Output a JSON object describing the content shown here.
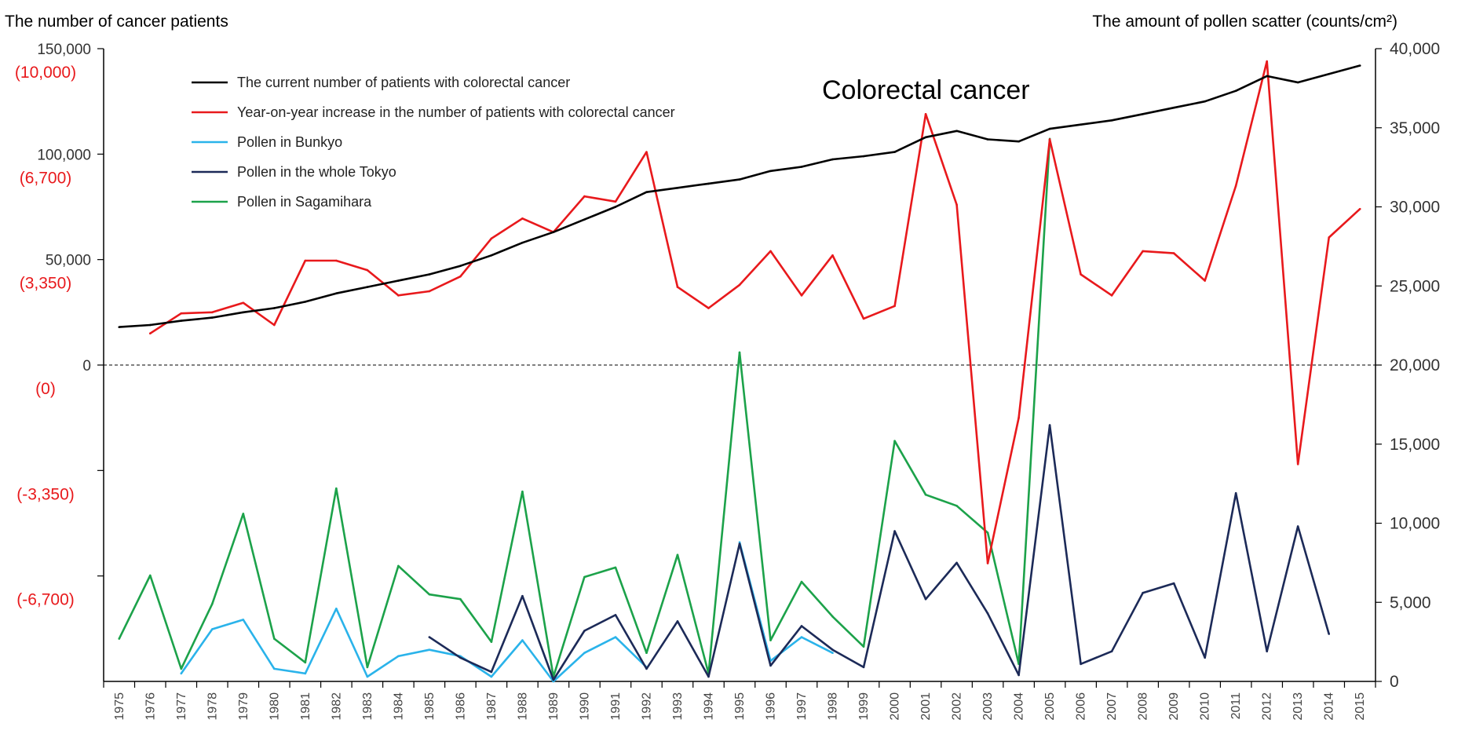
{
  "chart_data": {
    "type": "line",
    "title": "Colorectal cancer",
    "ylabel_left": "The number of cancer patients",
    "ylabel_right": "The amount of pollen scatter (counts/cm²)",
    "x": [
      "1975",
      "1976",
      "1977",
      "1978",
      "1979",
      "1980",
      "1981",
      "1982",
      "1983",
      "1984",
      "1985",
      "1986",
      "1987",
      "1988",
      "1989",
      "1990",
      "1991",
      "1992",
      "1993",
      "1994",
      "1995",
      "1996",
      "1997",
      "1998",
      "1999",
      "2000",
      "2001",
      "2002",
      "2003",
      "2004",
      "2005",
      "2006",
      "2007",
      "2008",
      "2009",
      "2010",
      "2011",
      "2012",
      "2013",
      "2014",
      "2015"
    ],
    "left_axis": {
      "ylim": [
        -150000,
        150000
      ],
      "ticks": [
        {
          "value": 150000,
          "label": "150,000",
          "sub": "(10,000)"
        },
        {
          "value": 100000,
          "label": "100,000",
          "sub": "(6,700)"
        },
        {
          "value": 50000,
          "label": "50,000",
          "sub": "(3,350)"
        },
        {
          "value": 0,
          "label": "0",
          "sub": "(0)"
        },
        {
          "value": -50000,
          "label": "",
          "sub": "(-3,350)"
        },
        {
          "value": -100000,
          "label": "",
          "sub": "(-6,700)"
        }
      ]
    },
    "right_axis": {
      "ylim": [
        0,
        40000
      ],
      "ticks": [
        {
          "value": 40000,
          "label": "40,000"
        },
        {
          "value": 35000,
          "label": "35,000"
        },
        {
          "value": 30000,
          "label": "30,000"
        },
        {
          "value": 25000,
          "label": "25,000"
        },
        {
          "value": 20000,
          "label": "20,000"
        },
        {
          "value": 15000,
          "label": "15,000"
        },
        {
          "value": 10000,
          "label": "10,000"
        },
        {
          "value": 5000,
          "label": "5,000"
        },
        {
          "value": 0,
          "label": "0"
        }
      ]
    },
    "series": [
      {
        "name": "The current number of patients with colorectal cancer",
        "axis": "left",
        "color": "#000000",
        "values": [
          18000,
          19000,
          21000,
          22500,
          25000,
          27000,
          30000,
          34000,
          37000,
          40000,
          43000,
          47000,
          52000,
          58000,
          63000,
          69000,
          75000,
          82000,
          84000,
          86000,
          88000,
          92000,
          94000,
          97500,
          99000,
          101000,
          108000,
          111000,
          107000,
          106000,
          112000,
          114000,
          116000,
          119000,
          122000,
          125000,
          130000,
          137000,
          134000,
          138000,
          142000
        ]
      },
      {
        "name": "Year-on-year increase in the number of patients with colorectal cancer",
        "axis": "left",
        "color": "#e8191c",
        "values": [
          null,
          15000,
          24500,
          25000,
          29500,
          19000,
          49500,
          49500,
          45000,
          33000,
          35000,
          42000,
          60000,
          69500,
          63000,
          80000,
          77500,
          101000,
          37000,
          27000,
          38000,
          54000,
          33000,
          52000,
          22000,
          28000,
          119000,
          76000,
          -94000,
          -25000,
          107000,
          43000,
          33000,
          54000,
          53000,
          40000,
          85000,
          144000,
          -47000,
          60500,
          74000
        ]
      },
      {
        "name": "Pollen in Bunkyo",
        "axis": "right",
        "color": "#2ab3ea",
        "values": [
          null,
          null,
          500,
          3300,
          3900,
          800,
          500,
          4600,
          300,
          1600,
          2000,
          1600,
          300,
          2600,
          0,
          1800,
          2800,
          900,
          null,
          null,
          8800,
          1300,
          2800,
          1800,
          null,
          null,
          null,
          null,
          null,
          null,
          null,
          null,
          null,
          null,
          null,
          null,
          null,
          null,
          null,
          null,
          null
        ]
      },
      {
        "name": "Pollen in the whole Tokyo",
        "axis": "right",
        "color": "#1c2a58",
        "values": [
          null,
          null,
          null,
          null,
          null,
          null,
          null,
          null,
          null,
          null,
          2800,
          1500,
          600,
          5400,
          100,
          3200,
          4200,
          800,
          3800,
          300,
          8700,
          1000,
          3500,
          2000,
          900,
          9500,
          5200,
          7500,
          4300,
          400,
          16200,
          1100,
          1900,
          5600,
          6200,
          1500,
          11900,
          1900,
          9800,
          3000,
          null
        ]
      },
      {
        "name": "Pollen in Sagamihara",
        "axis": "right",
        "color": "#1ca24a",
        "values": [
          2700,
          6700,
          800,
          4900,
          10600,
          2700,
          1200,
          12200,
          900,
          7300,
          5500,
          5200,
          2500,
          12000,
          300,
          6600,
          7200,
          1800,
          8000,
          500,
          20800,
          2600,
          6300,
          4100,
          2200,
          15200,
          11800,
          11100,
          9400,
          1100,
          34300,
          null,
          null,
          null,
          null,
          null,
          null,
          null,
          null,
          null,
          null
        ]
      }
    ]
  }
}
